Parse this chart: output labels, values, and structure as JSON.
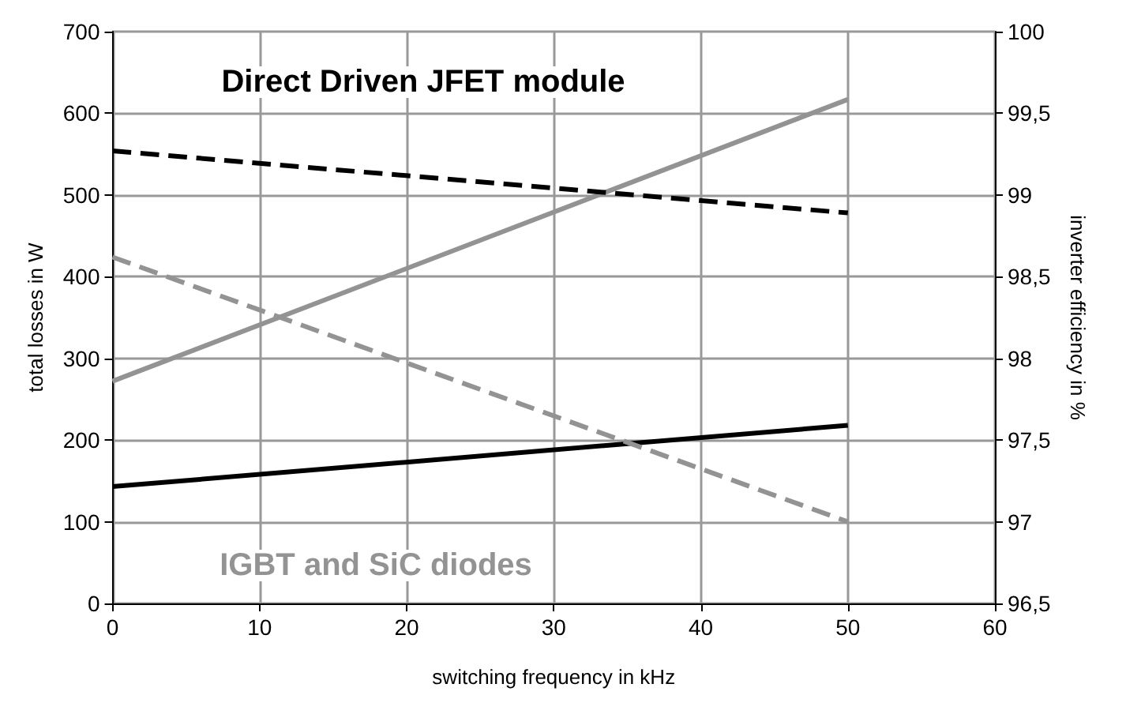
{
  "chart_data": {
    "type": "line",
    "xlabel": "switching frequency in kHz",
    "ylabel": "total losses in W",
    "y2label": "inverter efficiency in %",
    "x": [
      0,
      50
    ],
    "series": [
      {
        "color": "#000000",
        "values": [
          143,
          218
        ],
        "line_style": "solid"
      },
      {
        "color": "#939393",
        "values": [
          272,
          617
        ],
        "line_style": "solid"
      },
      {
        "color": "#000000",
        "values": [
          99.27,
          98.89
        ],
        "axis": "y2",
        "line_style": "dashed"
      },
      {
        "color": "#939393",
        "values": [
          98.62,
          97.0
        ],
        "axis": "y2",
        "line_style": "dashed"
      }
    ],
    "annotations": [
      "Direct Driven JFET module",
      "IGBT and SiC diodes"
    ],
    "xlim": [
      0,
      60
    ],
    "xticks": [
      0,
      10,
      20,
      30,
      40,
      50,
      60
    ],
    "ylim": [
      0,
      700
    ],
    "yticks": [
      0,
      100,
      200,
      300,
      400,
      500,
      600,
      700
    ],
    "y2lim": [
      96.5,
      100
    ],
    "y2ticks": [
      {
        "value": 96.5,
        "label": "96,5"
      },
      97,
      {
        "value": 97.5,
        "label": "97,5"
      },
      98,
      {
        "value": 98.5,
        "label": "98,5"
      },
      99,
      {
        "value": 99.5,
        "label": "99,5"
      },
      100
    ],
    "grid": true,
    "marker": "none"
  }
}
